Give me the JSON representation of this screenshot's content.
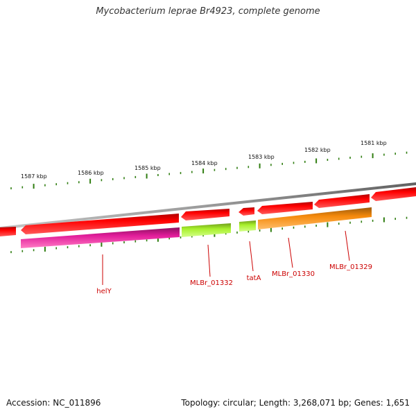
{
  "title": "Mycobacterium leprae Br4923, complete genome",
  "accession_text": "Accession: NC_011896",
  "topology_text": "Topology: circular; Length: 3,268,071 bp; Genes: 1,651",
  "scale": {
    "labels": [
      "1587 kbp",
      "1586 kbp",
      "1585 kbp",
      "1584 kbp",
      "1583 kbp",
      "1582 kbp",
      "1581 kbp"
    ]
  },
  "genes": [
    {
      "name": "helY",
      "color": "#e21d9a"
    },
    {
      "name": "MLBr_01332",
      "color": "#a8f02c"
    },
    {
      "name": "tatA",
      "color": "#a8f02c"
    },
    {
      "name": "MLBr_01330",
      "color": "#f58a0c"
    },
    {
      "name": "MLBr_01329",
      "color": "#f58a0c"
    }
  ],
  "colors": {
    "cds": "#ff0000",
    "backbone": "#8a8a8a",
    "tick": "#2f7d10",
    "label": "#cc0000"
  }
}
